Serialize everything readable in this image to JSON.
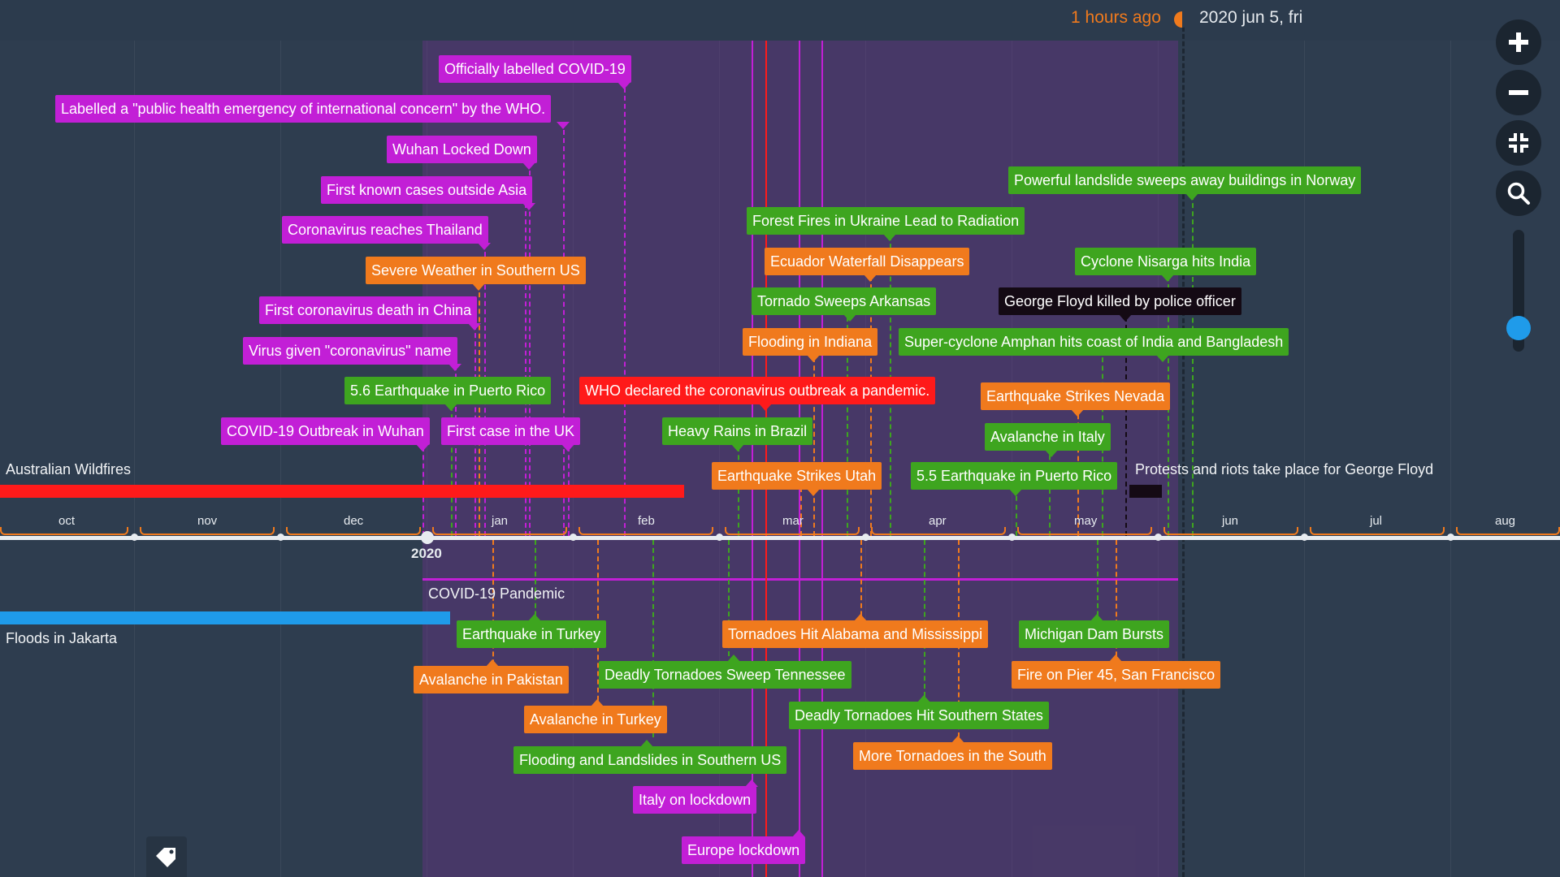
{
  "header": {
    "relative_time": "1 hours ago",
    "current_date": "2020 jun 5, fri"
  },
  "controls": {
    "zoom_in_icon": "plus-icon",
    "zoom_out_icon": "minus-icon",
    "fit_icon": "compress-icon",
    "search_icon": "search-icon",
    "zoom_level_fraction": 0.35
  },
  "axis": {
    "year_label": "2020",
    "months": [
      "oct",
      "nov",
      "dec",
      "jan",
      "feb",
      "mar",
      "apr",
      "may",
      "jun",
      "jul",
      "aug"
    ]
  },
  "periods": {
    "wildfires": "Australian Wildfires",
    "jakarta": "Floods in Jakarta",
    "covid": "COVID-19 Pandemic",
    "floyd": "Protests and riots take place for George Floyd"
  },
  "colors": {
    "magenta": "#c21fd6",
    "orange": "#f07a1d",
    "green": "#3ea51f",
    "red": "#ff1a1a",
    "black": "#140a14",
    "blue": "#1f9bea"
  },
  "events_above": [
    {
      "label": "Officially labelled COVID-19",
      "color": "magenta"
    },
    {
      "label": "Labelled a \"public health emergency of international concern\" by the WHO.",
      "color": "magenta"
    },
    {
      "label": "Wuhan Locked Down",
      "color": "magenta"
    },
    {
      "label": "First known cases outside Asia",
      "color": "magenta"
    },
    {
      "label": "Coronavirus reaches Thailand",
      "color": "magenta"
    },
    {
      "label": "Severe Weather in Southern US",
      "color": "orange"
    },
    {
      "label": "First coronavirus death in China",
      "color": "magenta"
    },
    {
      "label": "Virus given \"coronavirus\" name",
      "color": "magenta"
    },
    {
      "label": "5.6 Earthquake in Puerto Rico",
      "color": "green"
    },
    {
      "label": "COVID-19 Outbreak in Wuhan",
      "color": "magenta"
    },
    {
      "label": "First case in the UK",
      "color": "magenta"
    },
    {
      "label": "WHO declared the coronavirus outbreak a pandemic.",
      "color": "red"
    },
    {
      "label": "Heavy Rains in Brazil",
      "color": "green"
    },
    {
      "label": "Earthquake Strikes Utah",
      "color": "orange"
    },
    {
      "label": "Forest Fires in Ukraine Lead to Radiation",
      "color": "green"
    },
    {
      "label": "Ecuador Waterfall Disappears",
      "color": "orange"
    },
    {
      "label": "Tornado Sweeps Arkansas",
      "color": "green"
    },
    {
      "label": "Flooding in Indiana",
      "color": "orange"
    },
    {
      "label": "Powerful landslide sweeps away buildings in Norway",
      "color": "green"
    },
    {
      "label": "Cyclone Nisarga hits India",
      "color": "green"
    },
    {
      "label": "George Floyd killed by police officer",
      "color": "black"
    },
    {
      "label": "Super-cyclone Amphan hits coast of India and Bangladesh",
      "color": "green"
    },
    {
      "label": "Earthquake Strikes Nevada",
      "color": "orange"
    },
    {
      "label": "Avalanche in Italy",
      "color": "green"
    },
    {
      "label": "5.5 Earthquake in Puerto Rico",
      "color": "green"
    }
  ],
  "events_below": [
    {
      "label": "Earthquake in Turkey",
      "color": "green"
    },
    {
      "label": "Avalanche in Pakistan",
      "color": "orange"
    },
    {
      "label": "Avalanche in Turkey",
      "color": "orange"
    },
    {
      "label": "Deadly Tornadoes Sweep Tennessee",
      "color": "green"
    },
    {
      "label": "Flooding and Landslides in Southern US",
      "color": "green"
    },
    {
      "label": "Italy on lockdown",
      "color": "magenta"
    },
    {
      "label": "Europe lockdown",
      "color": "magenta"
    },
    {
      "label": "Tornadoes Hit Alabama and Mississippi",
      "color": "orange"
    },
    {
      "label": "Deadly Tornadoes Hit Southern States",
      "color": "green"
    },
    {
      "label": "More Tornadoes in the South",
      "color": "orange"
    },
    {
      "label": "Michigan Dam Bursts",
      "color": "green"
    },
    {
      "label": "Fire on Pier 45, San Francisco",
      "color": "orange"
    }
  ],
  "footer": {
    "tag_icon": "tag-icon"
  }
}
